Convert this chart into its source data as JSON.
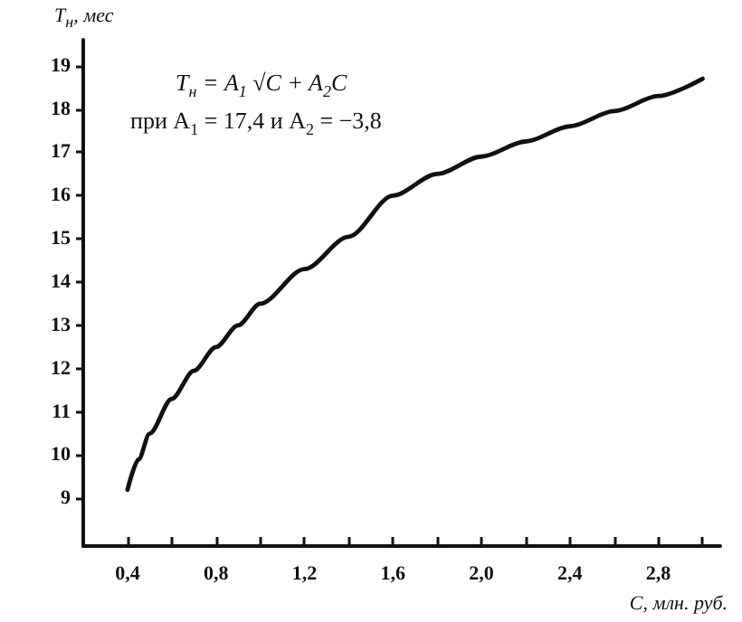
{
  "chart_data": {
    "type": "line",
    "xlabel": "C, млн. руб.",
    "ylabel": "T$_{н}$, мес",
    "annotations": [
      "T$_{н}$ = A$_{1}$ √C + A$_{2}$C",
      "при A$_{1}$ = 17,4 и A$_{2}$ = −3,8"
    ],
    "x": [
      0.4,
      0.45,
      0.5,
      0.6,
      0.7,
      0.8,
      0.9,
      1.0,
      1.2,
      1.4,
      1.6,
      1.8,
      2.0,
      2.2,
      2.4,
      2.6,
      2.8,
      3.0
    ],
    "series": [
      {
        "color": "#111111",
        "values": [
          9.2,
          9.9,
          10.5,
          11.3,
          11.95,
          12.5,
          13.0,
          13.5,
          14.3,
          15.05,
          16.0,
          16.5,
          16.9,
          17.25,
          17.6,
          17.95,
          18.3,
          18.7
        ]
      }
    ],
    "xlim": [
      0.2,
      3.08
    ],
    "ylim": [
      7.9,
      19.6
    ],
    "xticks": [
      {
        "value": 0.4,
        "label": "0,4"
      },
      {
        "value": 0.6,
        "label": null
      },
      {
        "value": 0.8,
        "label": "0,8"
      },
      {
        "value": 1.0,
        "label": null
      },
      {
        "value": 1.2,
        "label": "1,2"
      },
      {
        "value": 1.4,
        "label": null
      },
      {
        "value": 1.6,
        "label": "1,6"
      },
      {
        "value": 1.8,
        "label": null
      },
      {
        "value": 2.0,
        "label": "2,0"
      },
      {
        "value": 2.2,
        "label": null
      },
      {
        "value": 2.4,
        "label": "2,4"
      },
      {
        "value": 2.6,
        "label": null
      },
      {
        "value": 2.8,
        "label": "2,8"
      },
      {
        "value": 3.0,
        "label": null
      }
    ],
    "yticks": [
      9,
      10,
      11,
      12,
      13,
      14,
      15,
      16,
      17,
      18,
      19
    ],
    "grid": false,
    "marker": "none",
    "line_style": "solid"
  }
}
